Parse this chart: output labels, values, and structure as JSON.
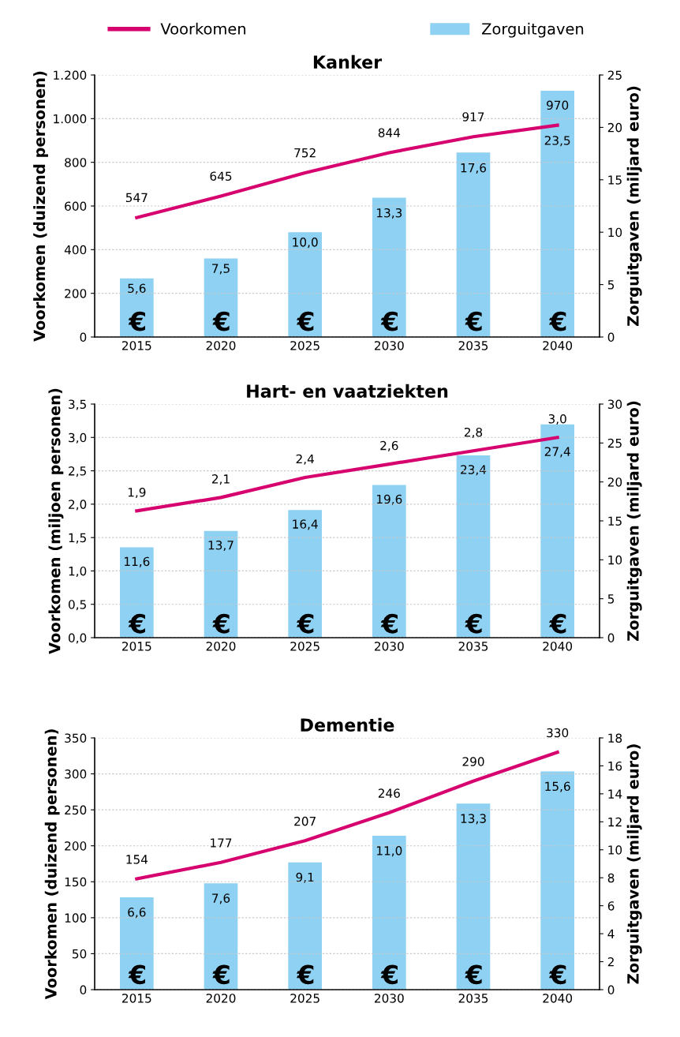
{
  "chart_data": [
    {
      "type": "bar",
      "title": "Kanker",
      "categories": [
        "2015",
        "2020",
        "2025",
        "2030",
        "2035",
        "2040"
      ],
      "ylabel": "Voorkomen (duizend personen)",
      "y2label": "Zorguitgaven (miljard euro)",
      "ylim": [
        0,
        1200
      ],
      "yticks": [
        0,
        200,
        400,
        600,
        800,
        {
          "value": 1000,
          "label": "1.000"
        },
        {
          "value": 1200,
          "label": "1.200"
        }
      ],
      "y2lim": [
        0,
        25
      ],
      "y2ticks": [
        0,
        5,
        10,
        15,
        20,
        25
      ],
      "grid": "y",
      "legend": "top",
      "series": [
        {
          "name": "Voorkomen",
          "type": "line",
          "color": "#d6006f",
          "values": [
            547,
            645,
            752,
            844,
            917,
            970
          ],
          "value_labels": [
            "547",
            "645",
            "752",
            "844",
            "917",
            "970"
          ]
        },
        {
          "name": "Zorguitgaven",
          "axis": "y2",
          "color": "#8fd1f2",
          "values": [
            5.6,
            7.5,
            10.0,
            13.3,
            17.6,
            23.5
          ],
          "value_labels": [
            "5,6",
            "7,5",
            "10,0",
            "13,3",
            "17,6",
            "23,5"
          ]
        }
      ]
    },
    {
      "type": "bar",
      "title": "Hart- en vaatziekten",
      "categories": [
        "2015",
        "2020",
        "2025",
        "2030",
        "2035",
        "2040"
      ],
      "ylabel": "Voorkomen (miljoen personen)",
      "y2label": "Zorguitgaven (miljard euro)",
      "ylim": [
        0,
        3.5
      ],
      "yticks": [
        {
          "value": 0,
          "label": "0,0"
        },
        {
          "value": 0.5,
          "label": "0,5"
        },
        {
          "value": 1.0,
          "label": "1,0"
        },
        {
          "value": 1.5,
          "label": "1,5"
        },
        {
          "value": 2.0,
          "label": "2,0"
        },
        {
          "value": 2.5,
          "label": "2,5"
        },
        {
          "value": 3.0,
          "label": "3,0"
        },
        {
          "value": 3.5,
          "label": "3,5"
        }
      ],
      "y2lim": [
        0,
        30
      ],
      "y2ticks": [
        0,
        5,
        10,
        15,
        20,
        25,
        30
      ],
      "grid": "y",
      "series": [
        {
          "type": "line",
          "color": "#d6006f",
          "values": [
            1.9,
            2.1,
            2.4,
            2.6,
            2.8,
            3.0
          ],
          "value_labels": [
            "1,9",
            "2,1",
            "2,4",
            "2,6",
            "2,8",
            "3,0"
          ]
        },
        {
          "axis": "y2",
          "color": "#8fd1f2",
          "values": [
            11.6,
            13.7,
            16.4,
            19.6,
            23.4,
            27.4
          ],
          "value_labels": [
            "11,6",
            "13,7",
            "16,4",
            "19,6",
            "23,4",
            "27,4"
          ]
        }
      ]
    },
    {
      "type": "bar",
      "title": "Dementie",
      "categories": [
        "2015",
        "2020",
        "2025",
        "2030",
        "2035",
        "2040"
      ],
      "ylabel": "Voorkomen (duizend personen)",
      "y2label": "Zorguitgaven (miljard euro)",
      "ylim": [
        0,
        350
      ],
      "yticks": [
        0,
        50,
        100,
        150,
        200,
        250,
        300,
        350
      ],
      "y2lim": [
        0,
        18
      ],
      "y2ticks": [
        0,
        2,
        4,
        6,
        8,
        10,
        12,
        14,
        16,
        18
      ],
      "grid": "y",
      "series": [
        {
          "type": "line",
          "color": "#d6006f",
          "values": [
            154,
            177,
            207,
            246,
            290,
            330
          ],
          "value_labels": [
            "154",
            "177",
            "207",
            "246",
            "290",
            "330"
          ]
        },
        {
          "axis": "y2",
          "color": "#8fd1f2",
          "values": [
            6.6,
            7.6,
            9.1,
            11.0,
            13.3,
            15.6
          ],
          "value_labels": [
            "6,6",
            "7,6",
            "9,1",
            "11,0",
            "13,3",
            "15,6"
          ]
        }
      ]
    }
  ]
}
